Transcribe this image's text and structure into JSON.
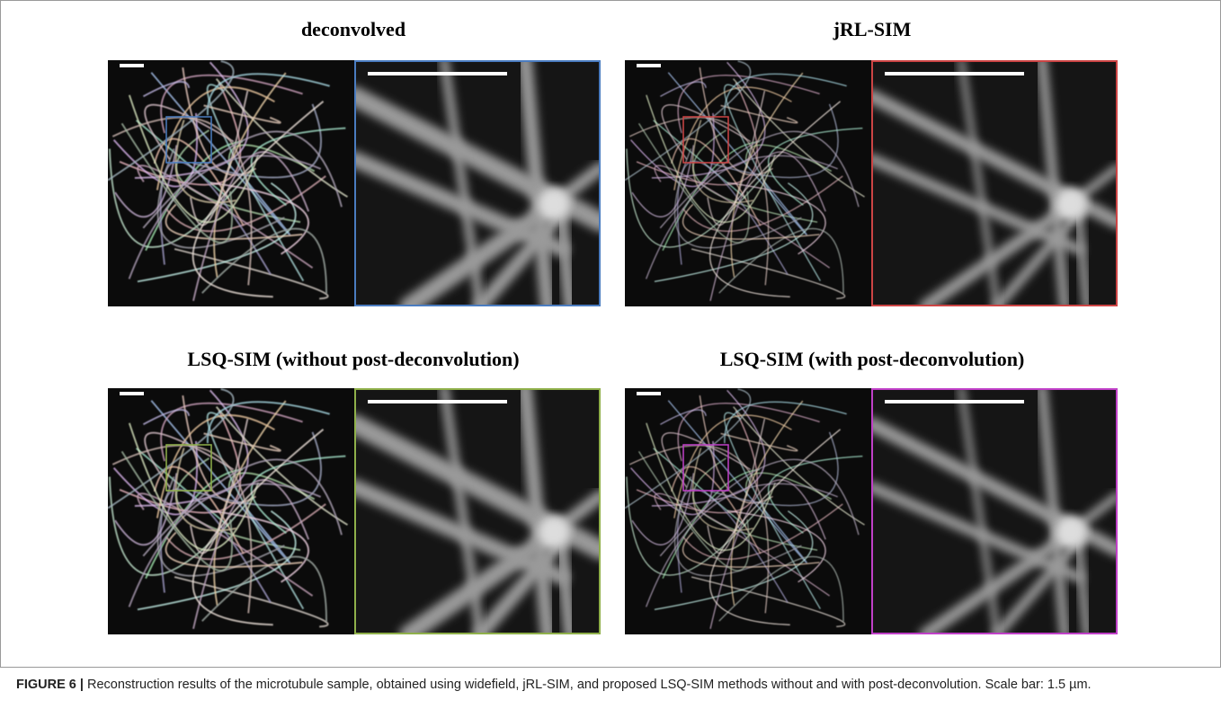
{
  "figure": {
    "panels": [
      {
        "title": "deconvolved",
        "color": "#4a7cc0"
      },
      {
        "title": "jRL-SIM",
        "color": "#cc4444"
      },
      {
        "title": "LSQ-SIM (without post-deconvolution)",
        "color": "#8fb04a"
      },
      {
        "title": "LSQ-SIM (with post-deconvolution)",
        "color": "#c040c8"
      }
    ],
    "caption": {
      "label": "FIGURE 6 |",
      "text": "Reconstruction results of the microtubule sample, obtained using widefield, jRL-SIM, and proposed LSQ-SIM methods without and with post-deconvolution. Scale bar: 1.5 µm."
    }
  }
}
